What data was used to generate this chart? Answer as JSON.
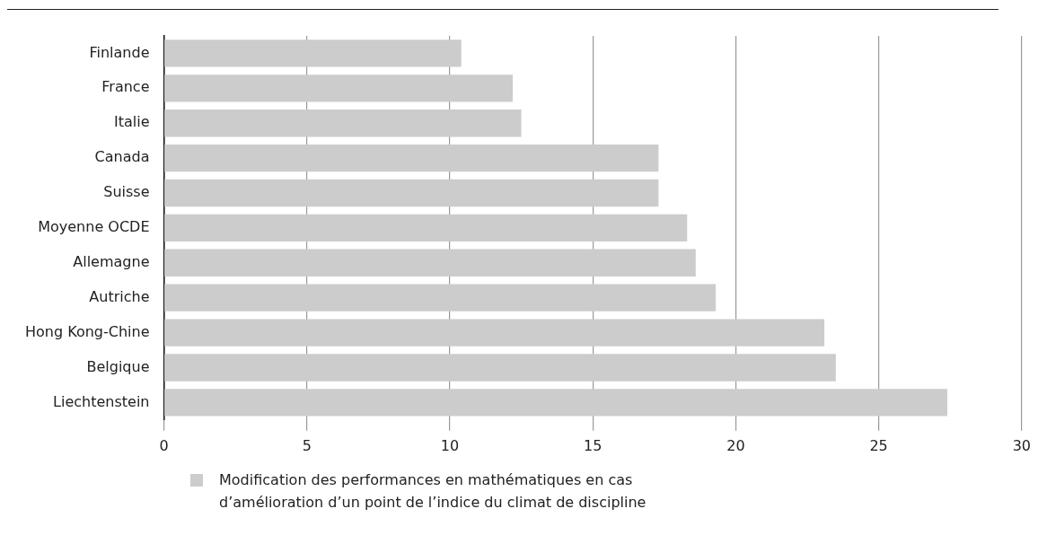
{
  "chart_data": {
    "type": "bar",
    "orientation": "horizontal",
    "categories": [
      "Finlande",
      "France",
      "Italie",
      "Canada",
      "Suisse",
      "Moyenne OCDE",
      "Allemagne",
      "Autriche",
      "Hong Kong-Chine",
      "Belgique",
      "Liechtenstein"
    ],
    "series": [
      {
        "name": "Modification des performances en mathématiques en cas d’amélioration d’un point de l’indice du climat de discipline",
        "color": "#cccccc",
        "values": [
          10.4,
          12.2,
          12.5,
          17.3,
          17.3,
          18.3,
          18.6,
          19.3,
          23.1,
          23.5,
          27.4
        ]
      }
    ],
    "xlim": [
      0,
      30
    ],
    "xticks": [
      0,
      5,
      10,
      15,
      20,
      25,
      30
    ],
    "grid": "x",
    "legend": "bottom left"
  }
}
